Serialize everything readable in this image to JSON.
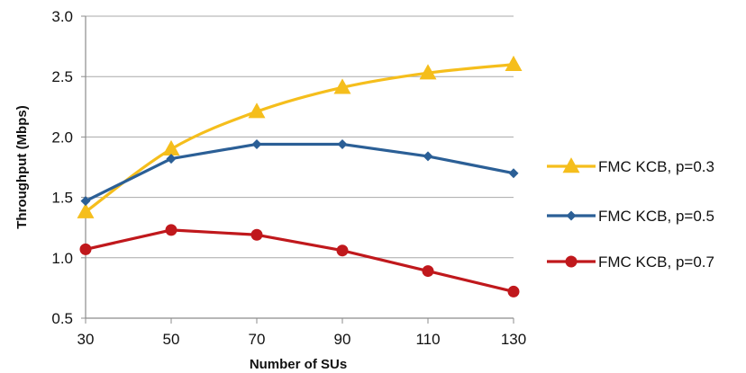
{
  "chart_data": {
    "type": "line",
    "x": [
      30,
      50,
      70,
      90,
      110,
      130
    ],
    "xlabel": "Number of SUs",
    "ylabel": "Throughput (Mbps)",
    "xlim": [
      30,
      130
    ],
    "ylim": [
      0.5,
      3.0
    ],
    "x_ticks": [
      "30",
      "50",
      "70",
      "90",
      "110",
      "130"
    ],
    "y_ticks": [
      "0.5",
      "1.0",
      "1.5",
      "2.0",
      "2.5",
      "3.0"
    ],
    "grid": "horizontal",
    "legend_position": "right",
    "series": [
      {
        "name": "FMC KCB, p=0.3",
        "values": [
          1.38,
          1.9,
          2.21,
          2.41,
          2.53,
          2.6
        ],
        "color": "#F5BE1C",
        "marker": "triangle"
      },
      {
        "name": "FMC KCB, p=0.5",
        "values": [
          1.47,
          1.82,
          1.94,
          1.94,
          1.84,
          1.7
        ],
        "color": "#2B5F96",
        "marker": "diamond"
      },
      {
        "name": "FMC KCB, p=0.7",
        "values": [
          1.07,
          1.23,
          1.19,
          1.06,
          0.89,
          0.72
        ],
        "color": "#C0181C",
        "marker": "circle"
      }
    ]
  }
}
